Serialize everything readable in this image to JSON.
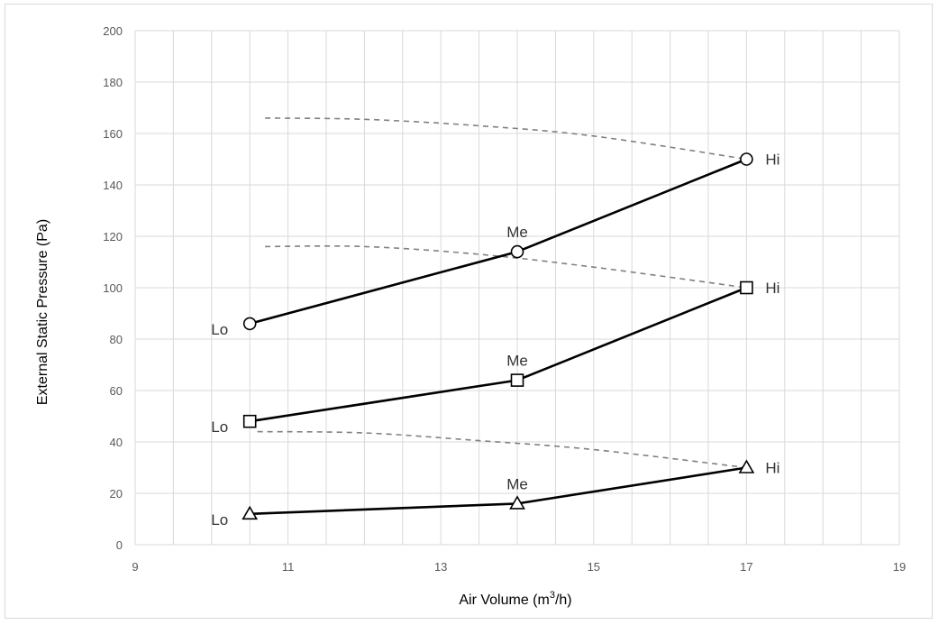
{
  "chart_data": {
    "type": "line",
    "xlabel": "Air Volume (m",
    "xlabel_sup": "3",
    "xlabel_suffix": "/h)",
    "ylabel": "External Static Pressure (Pa)",
    "xlim": [
      9,
      19
    ],
    "ylim": [
      0,
      200
    ],
    "x_ticks": [
      9,
      11,
      13,
      15,
      17,
      19
    ],
    "y_ticks": [
      0,
      20,
      40,
      60,
      80,
      100,
      120,
      140,
      160,
      180,
      200
    ],
    "x_minor_step": 0.5,
    "grid": true,
    "series": [
      {
        "marker": "circle",
        "points": [
          {
            "x": 10.5,
            "y": 86,
            "label": "Lo",
            "label_pos": "left"
          },
          {
            "x": 14,
            "y": 114,
            "label": "Me",
            "label_pos": "above"
          },
          {
            "x": 17,
            "y": 150,
            "label": "Hi",
            "label_pos": "right"
          }
        ]
      },
      {
        "marker": "square",
        "points": [
          {
            "x": 10.5,
            "y": 48,
            "label": "Lo",
            "label_pos": "left"
          },
          {
            "x": 14,
            "y": 64,
            "label": "Me",
            "label_pos": "above"
          },
          {
            "x": 17,
            "y": 100,
            "label": "Hi",
            "label_pos": "right"
          }
        ]
      },
      {
        "marker": "triangle",
        "points": [
          {
            "x": 10.5,
            "y": 12,
            "label": "Lo",
            "label_pos": "left"
          },
          {
            "x": 14,
            "y": 16,
            "label": "Me",
            "label_pos": "above"
          },
          {
            "x": 17,
            "y": 30,
            "label": "Hi",
            "label_pos": "right"
          }
        ]
      }
    ],
    "dashed_curves": [
      {
        "points": [
          [
            10.7,
            166
          ],
          [
            12.0,
            165.5
          ],
          [
            13.5,
            163
          ],
          [
            15.0,
            159
          ],
          [
            17.0,
            150
          ]
        ]
      },
      {
        "points": [
          [
            10.7,
            116
          ],
          [
            12.0,
            116
          ],
          [
            13.5,
            113
          ],
          [
            15.0,
            108
          ],
          [
            17.0,
            100
          ]
        ]
      },
      {
        "points": [
          [
            10.6,
            44
          ],
          [
            12.0,
            43.5
          ],
          [
            13.5,
            40.5
          ],
          [
            15.0,
            37
          ],
          [
            17.0,
            30
          ]
        ]
      }
    ],
    "colors": {
      "line": "#000000",
      "dashed": "#808080",
      "grid": "#d9d9d9",
      "tick_text": "#595959",
      "point_label": "#333333"
    }
  }
}
